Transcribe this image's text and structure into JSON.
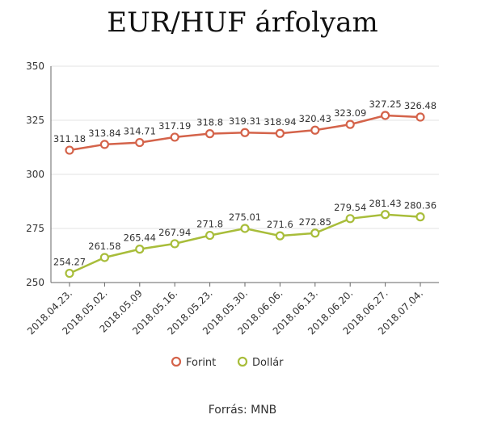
{
  "page": {
    "title": "EUR/HUF árfolyam",
    "source": "Forrás: MNB"
  },
  "chart_data": {
    "type": "line",
    "title": "EUR/HUF árfolyam",
    "xlabel": "",
    "ylabel": "",
    "categories": [
      "2018.04.23.",
      "2018.05.02.",
      "2018.05.09",
      "2018.05.16.",
      "2018.05.23.",
      "2018.05.30.",
      "2018.06.06.",
      "2018.06.13.",
      "2018.06.20.",
      "2018.06.27.",
      "2018.07.04."
    ],
    "ylim": [
      250,
      350
    ],
    "yticks": [
      250,
      275,
      300,
      325,
      350
    ],
    "grid": true,
    "legend_position": "bottom",
    "series": [
      {
        "name": "Forint",
        "color": "#d4634a",
        "values": [
          311.18,
          313.84,
          314.71,
          317.19,
          318.8,
          319.31,
          318.94,
          320.43,
          323.09,
          327.25,
          326.48
        ],
        "labels": [
          "311.18",
          "313.84",
          "314.71",
          "317.19",
          "318.8",
          "319.31",
          "318.94",
          "320.43",
          "323.09",
          "327.25",
          "326.48"
        ]
      },
      {
        "name": "Dollár",
        "color": "#a8bd3a",
        "values": [
          254.27,
          261.58,
          265.44,
          267.94,
          271.8,
          275.01,
          271.6,
          272.85,
          279.54,
          281.43,
          280.36
        ],
        "labels": [
          "254.27",
          "261.58",
          "265.44",
          "267.94",
          "271.8",
          "275.01",
          "271.6",
          "272.85",
          "279.54",
          "281.43",
          "280.36"
        ]
      }
    ]
  }
}
